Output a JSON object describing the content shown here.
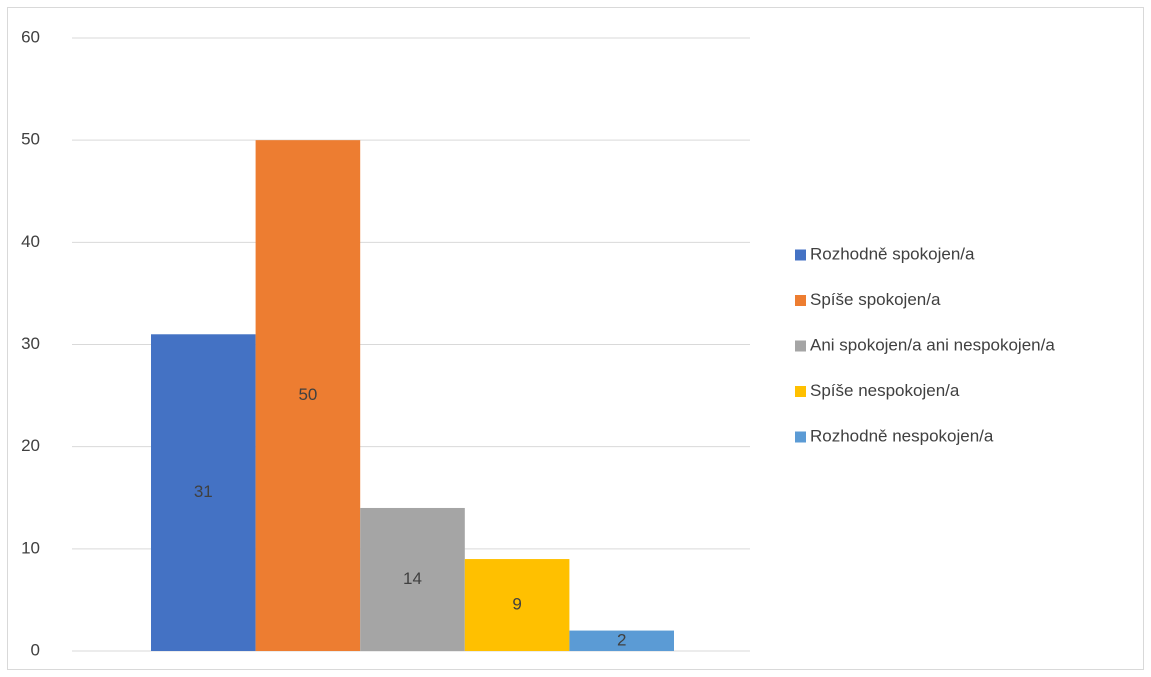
{
  "chart_data": {
    "type": "bar",
    "categories": [
      ""
    ],
    "series": [
      {
        "name": "Rozhodně spokojen/a",
        "values": [
          31
        ],
        "color": "#4472C4"
      },
      {
        "name": "Spíše spokojen/a",
        "values": [
          50
        ],
        "color": "#ED7D31"
      },
      {
        "name": "Ani spokojen/a ani nespokojen/a",
        "values": [
          14
        ],
        "color": "#A5A5A5"
      },
      {
        "name": "Spíše nespokojen/a",
        "values": [
          9
        ],
        "color": "#FFC000"
      },
      {
        "name": "Rozhodně nespokojen/a",
        "values": [
          2
        ],
        "color": "#5B9BD5"
      }
    ],
    "ylim": [
      0,
      60
    ],
    "yticks": [
      0,
      10,
      20,
      30,
      40,
      50,
      60
    ],
    "grid": true,
    "legend_position": "right",
    "data_labels": true,
    "title": "",
    "xlabel": "",
    "ylabel": ""
  }
}
